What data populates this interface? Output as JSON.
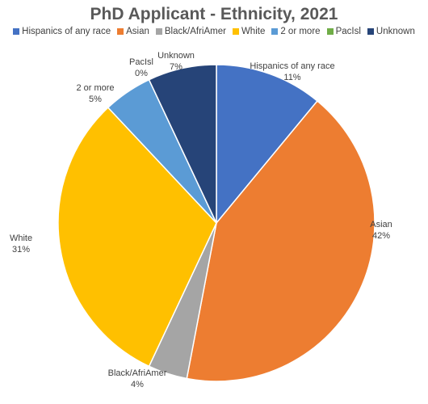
{
  "chart_data": {
    "type": "pie",
    "title": "PhD Applicant - Ethnicity, 2021",
    "legend_position": "top",
    "slices": [
      {
        "label": "Hispanics of any race",
        "value": 11,
        "value_label": "11%",
        "color": "#4472C4"
      },
      {
        "label": "Asian",
        "value": 42,
        "value_label": "42%",
        "color": "#ED7D31"
      },
      {
        "label": "Black/AfriAmer",
        "value": 4,
        "value_label": "4%",
        "color": "#A5A5A5"
      },
      {
        "label": "White",
        "value": 31,
        "value_label": "31%",
        "color": "#FFC000"
      },
      {
        "label": "2 or more",
        "value": 5,
        "value_label": "5%",
        "color": "#5B9BD5"
      },
      {
        "label": "PacIsl",
        "value": 0,
        "value_label": "0%",
        "color": "#70AD47"
      },
      {
        "label": "Unknown",
        "value": 7,
        "value_label": "7%",
        "color": "#264478"
      }
    ]
  }
}
